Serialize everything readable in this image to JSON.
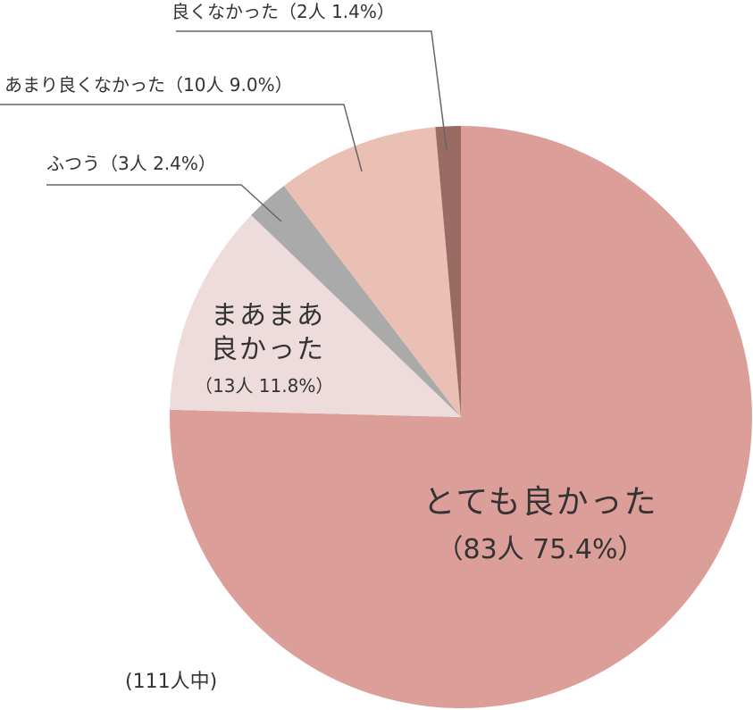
{
  "chart_data": {
    "type": "pie",
    "categories": [
      "とても良かった",
      "まあまあ良かった",
      "ふつう",
      "あまり良くなかった",
      "良くなかった"
    ],
    "values": [
      75.4,
      11.8,
      2.4,
      9.0,
      1.4
    ],
    "value_labels": [
      "（83人 75.4%）",
      "（13人 11.8%）",
      "（3人 2.4%）",
      "（10人 9.0%）",
      "（2人 1.4%）"
    ],
    "colors": [
      "#dc9e99",
      "#eedcdc",
      "#aaaaaa",
      "#eabfb4",
      "#9a6b62"
    ],
    "note": "(111人中)"
  }
}
